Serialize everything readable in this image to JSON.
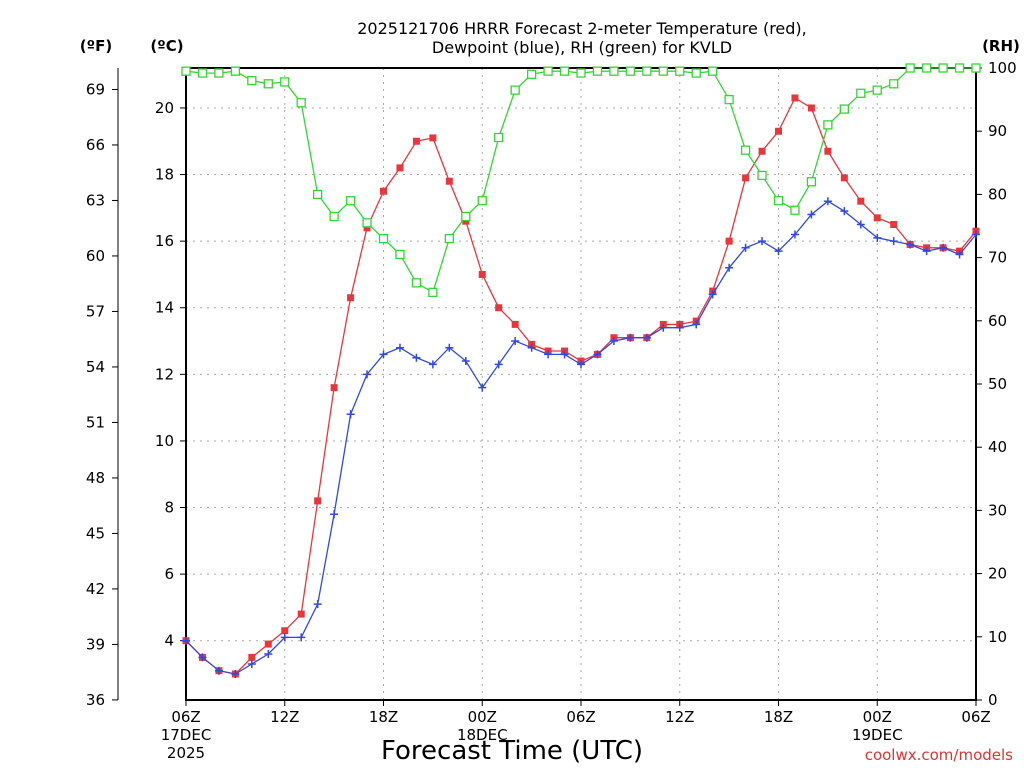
{
  "chart_data": {
    "type": "line",
    "title": [
      "2025121706 HRRR Forecast 2-meter Temperature (red),",
      "Dewpoint (blue), RH (green) for KVLD"
    ],
    "xlabel": "Forecast Time (UTC)",
    "credit": "coolwx.com/models",
    "units": {
      "fahrenheit": "(ºF)",
      "celsius": "(ºC)",
      "rh": "(RH)"
    },
    "x_hours": [
      0,
      1,
      2,
      3,
      4,
      5,
      6,
      7,
      8,
      9,
      10,
      11,
      12,
      13,
      14,
      15,
      16,
      17,
      18,
      19,
      20,
      21,
      22,
      23,
      24,
      25,
      26,
      27,
      28,
      29,
      30,
      31,
      32,
      33,
      34,
      35,
      36,
      37,
      38,
      39,
      40,
      41,
      42,
      43,
      44,
      45,
      46,
      47,
      48
    ],
    "x_range": [
      0,
      48
    ],
    "x_ticks": [
      {
        "hour": 0,
        "lines": [
          "06Z",
          "17DEC",
          "2025"
        ]
      },
      {
        "hour": 6,
        "lines": [
          "12Z"
        ]
      },
      {
        "hour": 12,
        "lines": [
          "18Z"
        ]
      },
      {
        "hour": 18,
        "lines": [
          "00Z",
          "18DEC"
        ]
      },
      {
        "hour": 24,
        "lines": [
          "06Z"
        ]
      },
      {
        "hour": 30,
        "lines": [
          "12Z"
        ]
      },
      {
        "hour": 36,
        "lines": [
          "18Z"
        ]
      },
      {
        "hour": 42,
        "lines": [
          "00Z",
          "19DEC"
        ]
      },
      {
        "hour": 48,
        "lines": [
          "06Z"
        ]
      }
    ],
    "celsius_range": [
      2.22,
      21.2
    ],
    "celsius_ticks": [
      "4",
      "6",
      "8",
      "10",
      "12",
      "14",
      "16",
      "18",
      "20"
    ],
    "fahrenheit_ticks": [
      "36",
      "39",
      "42",
      "45",
      "48",
      "51",
      "54",
      "57",
      "60",
      "63",
      "66",
      "69"
    ],
    "rh_range": [
      0,
      100
    ],
    "rh_ticks": [
      "0",
      "10",
      "20",
      "30",
      "40",
      "50",
      "60",
      "70",
      "80",
      "90",
      "100"
    ],
    "series": [
      {
        "name": "Temperature",
        "unit": "C",
        "color": "#e8373c",
        "marker": "filled-square",
        "values": [
          4.0,
          3.5,
          3.1,
          3.0,
          3.5,
          3.9,
          4.3,
          4.8,
          8.2,
          11.6,
          14.3,
          16.4,
          17.5,
          18.2,
          19.0,
          19.1,
          17.8,
          16.6,
          15.0,
          14.0,
          13.5,
          12.9,
          12.7,
          12.7,
          12.4,
          12.6,
          13.1,
          13.1,
          13.1,
          13.5,
          13.5,
          13.6,
          14.5,
          16.0,
          17.9,
          18.7,
          19.3,
          20.3,
          20.0,
          18.7,
          17.9,
          17.2,
          16.7,
          16.5,
          15.9,
          15.8,
          15.8,
          15.7,
          16.3
        ]
      },
      {
        "name": "Dewpoint",
        "unit": "C",
        "color": "#3049e0",
        "marker": "plus",
        "values": [
          4.0,
          3.5,
          3.1,
          3.0,
          3.3,
          3.6,
          4.1,
          4.1,
          5.1,
          7.8,
          10.8,
          12.0,
          12.6,
          12.8,
          12.5,
          12.3,
          12.8,
          12.4,
          11.6,
          12.3,
          13.0,
          12.8,
          12.6,
          12.6,
          12.3,
          12.6,
          13.0,
          13.1,
          13.1,
          13.4,
          13.4,
          13.5,
          14.4,
          15.2,
          15.8,
          16.0,
          15.7,
          16.2,
          16.8,
          17.2,
          16.9,
          16.5,
          16.1,
          16.0,
          15.9,
          15.7,
          15.8,
          15.6,
          16.2
        ]
      },
      {
        "name": "RH",
        "unit": "%",
        "color": "#33d633",
        "marker": "open-square",
        "values": [
          99.5,
          99.2,
          99.2,
          99.5,
          98.0,
          97.5,
          97.8,
          94.5,
          80.0,
          76.5,
          79.0,
          75.5,
          73.0,
          70.5,
          66.0,
          64.5,
          73.0,
          76.5,
          79.0,
          89.0,
          96.5,
          99.0,
          99.5,
          99.5,
          99.2,
          99.5,
          99.5,
          99.5,
          99.5,
          99.5,
          99.5,
          99.2,
          99.5,
          95.0,
          87.0,
          83.0,
          79.0,
          77.5,
          82.0,
          91.0,
          93.5,
          96.0,
          96.5,
          97.5,
          100,
          100,
          100,
          100,
          100
        ]
      }
    ]
  }
}
